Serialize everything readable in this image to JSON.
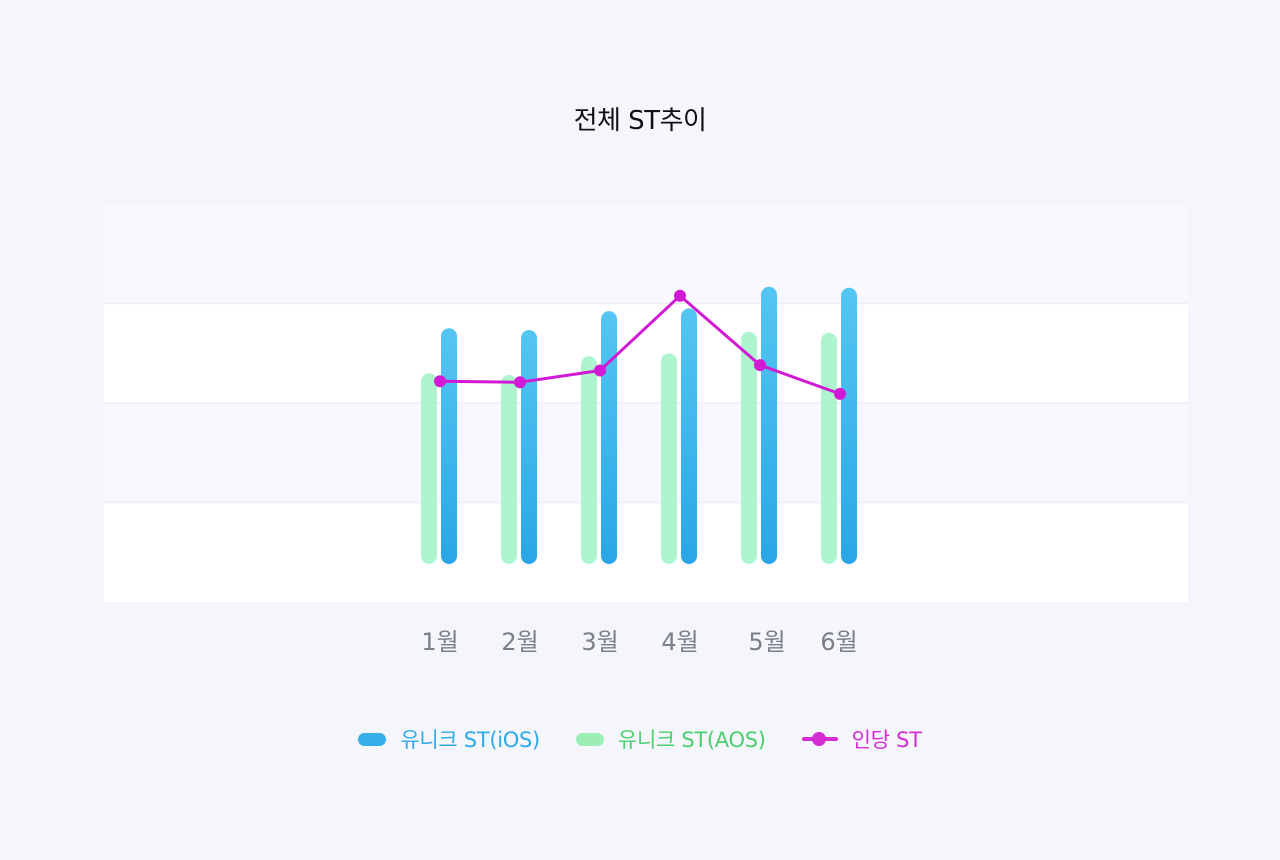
{
  "title": "전체 ST추이",
  "chart_data": {
    "type": "bar",
    "categories": [
      "1월",
      "2월",
      "3월",
      "4월",
      "5월",
      "6월"
    ],
    "ylim": [
      0,
      400
    ],
    "grid": true,
    "legend_position": "bottom-center",
    "series": [
      {
        "name": "유니크 ST(iOS)",
        "type": "bar",
        "values": [
          262,
          260,
          281,
          284,
          308,
          307
        ],
        "color": "#35aee8"
      },
      {
        "name": "유니크 ST(AOS)",
        "type": "bar",
        "values": [
          212,
          210,
          231,
          234,
          258,
          257
        ],
        "color": "#aef5cf"
      },
      {
        "name": "인당 ST",
        "type": "line",
        "values": [
          203,
          202,
          215,
          298,
          221,
          189
        ],
        "color": "#d21ad6"
      }
    ]
  },
  "legend": [
    {
      "label": "유니크 ST(iOS)",
      "color": "#35aee8",
      "text_color": "#2fa9ea",
      "shape": "pill"
    },
    {
      "label": "유니크 ST(AOS)",
      "color": "#9deeb6",
      "text_color": "#4ccf6f",
      "shape": "pill"
    },
    {
      "label": "인당 ST",
      "color": "#d42dd4",
      "text_color": "#d42dd4",
      "shape": "line-dot"
    }
  ]
}
